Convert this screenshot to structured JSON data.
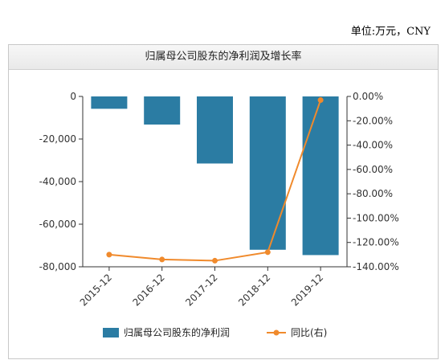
{
  "unit_label": "单位:万元，CNY",
  "chart_data": {
    "type": "bar",
    "title": "归属母公司股东的净利润及增长率",
    "categories": [
      "2015-12",
      "2016-12",
      "2017-12",
      "2018-12",
      "2019-12"
    ],
    "series": [
      {
        "name": "归属母公司股东的净利润",
        "type": "bar",
        "axis": "left",
        "values": [
          -5800,
          -13200,
          -31500,
          -72000,
          -74500
        ],
        "color": "#2b7ca3"
      },
      {
        "name": "同比(右)",
        "type": "line",
        "axis": "right",
        "values": [
          -130,
          -134,
          -135,
          -128,
          -3
        ],
        "color": "#f08a2c"
      }
    ],
    "left_axis": {
      "ylim": [
        -80000,
        0
      ],
      "ticks": [
        "0",
        "-20,000",
        "-40,000",
        "-60,000",
        "-80,000"
      ]
    },
    "right_axis": {
      "ylim": [
        -140,
        0
      ],
      "ticks": [
        "0.00%",
        "-20.00%",
        "-40.00%",
        "-60.00%",
        "-80.00%",
        "-100.00%",
        "-120.00%",
        "-140.00%"
      ]
    },
    "grid": false,
    "legend": "bottom"
  }
}
